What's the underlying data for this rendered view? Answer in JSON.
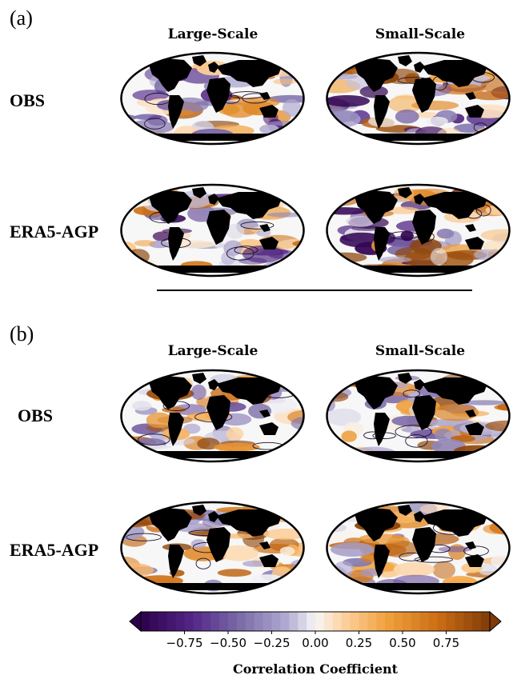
{
  "panels": [
    {
      "label": "(a)",
      "columns": [
        "Large-Scale",
        "Small-Scale"
      ],
      "rows": [
        "OBS",
        "ERA5-AGP"
      ],
      "maps": [
        {
          "row": "OBS",
          "column": "Large-Scale",
          "pattern": "a"
        },
        {
          "row": "OBS",
          "column": "Small-Scale",
          "pattern": "b"
        },
        {
          "row": "ERA5-AGP",
          "column": "Large-Scale",
          "pattern": "c"
        },
        {
          "row": "ERA5-AGP",
          "column": "Small-Scale",
          "pattern": "d"
        }
      ]
    },
    {
      "label": "(b)",
      "columns": [
        "Large-Scale",
        "Small-Scale"
      ],
      "rows": [
        "OBS",
        "ERA5-AGP"
      ],
      "maps": [
        {
          "row": "OBS",
          "column": "Large-Scale",
          "pattern": "e"
        },
        {
          "row": "OBS",
          "column": "Small-Scale",
          "pattern": "f"
        },
        {
          "row": "ERA5-AGP",
          "column": "Large-Scale",
          "pattern": "g"
        },
        {
          "row": "ERA5-AGP",
          "column": "Small-Scale",
          "pattern": "h"
        }
      ]
    }
  ],
  "chart_data": {
    "type": "heatmap",
    "projection": "Robinson (global)",
    "colormap": "PuOr_r (purple negative, orange positive)",
    "colorbar": {
      "title": "Correlation Coefficient",
      "range": [
        -1.0,
        1.0
      ],
      "levels": 40,
      "extend": "both",
      "ticks": [
        -0.75,
        -0.5,
        -0.25,
        0.0,
        0.25,
        0.5,
        0.75
      ],
      "tick_labels": [
        "−0.75",
        "−0.50",
        "−0.25",
        "0.00",
        "0.25",
        "0.50",
        "0.75"
      ],
      "neg_end_color": "#2d004b",
      "mid_color": "#f7f7f7",
      "pos_end_color": "#7f3b08"
    },
    "land_color": "#000000",
    "contours": "significance contours drawn in black"
  }
}
